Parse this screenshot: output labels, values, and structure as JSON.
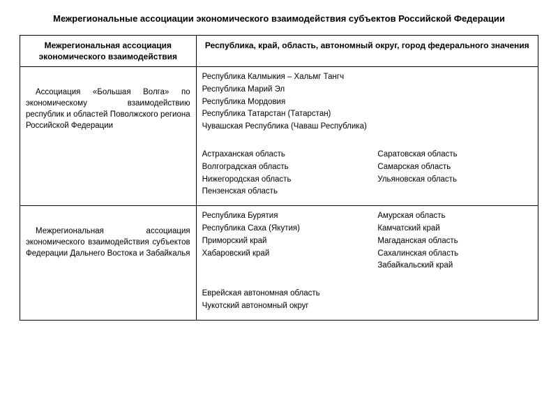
{
  "title": "Межрегиональные ассоциации экономического взаимодействия субъектов Российской Федерации",
  "headers": {
    "left": "Межрегиональная ассоциация экономического взаимодействия",
    "right": "Республика, край, область, автономный округ, город федерального значения"
  },
  "rows": [
    {
      "association": "Ассоциация «Большая Волга» по экономическому взаимодействию республик и областей Поволжского региона Российской Федерации",
      "block1": [
        "Республика Калмыкия – Хальмг Тангч",
        "Республика Марий Эл",
        "Республика Мордовия",
        "Республика Татарстан (Татарстан)",
        "Чувашская Республика (Чаваш Республика)"
      ],
      "block2_left": [
        "Астраханская область",
        "Волгоградская область",
        "Нижегородская область",
        "Пензенская область"
      ],
      "block2_right": [
        "Саратовская область",
        "Самарская область",
        "Ульяновская область"
      ]
    },
    {
      "association": "Межрегиональная ассоциация экономического взаимодействия субъектов Федерации Дальнего Востока и Забайкалья",
      "block1_left": [
        "Республика Бурятия",
        "Республика Саха (Якутия)",
        "Приморский край",
        "Хабаровский край"
      ],
      "block1_right": [
        "Амурская область",
        "Камчатский край",
        "Магаданская область",
        "Сахалинская область",
        "Забайкальский край"
      ],
      "block2": [
        "Еврейская автономная область",
        "Чукотский автономный округ"
      ]
    }
  ]
}
